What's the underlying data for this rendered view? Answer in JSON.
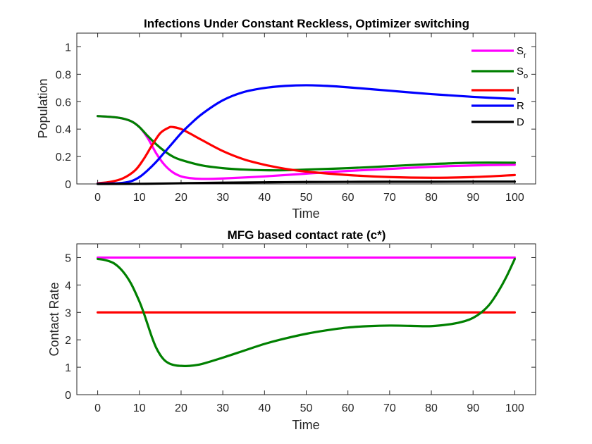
{
  "chart_data": [
    {
      "type": "line",
      "title": "Infections Under Constant Reckless, Optimizer switching",
      "xlabel": "Time",
      "ylabel": "Population",
      "xlim": [
        -5,
        105
      ],
      "ylim": [
        0,
        1.1
      ],
      "xticks": [
        0,
        10,
        20,
        30,
        40,
        50,
        60,
        70,
        80,
        90,
        100
      ],
      "yticks": [
        0,
        0.2,
        0.4,
        0.6,
        0.8,
        1
      ],
      "ytick_labels": [
        "0",
        "0.2",
        "0.4",
        "0.6",
        "0.8",
        "1"
      ],
      "grid": false,
      "legend_location": "top-right",
      "series": [
        {
          "name": "S",
          "sub": "r",
          "color": "#ff00ff",
          "x": [
            0,
            5,
            8,
            10,
            12,
            14,
            16,
            18,
            20,
            22,
            25,
            30,
            40,
            50,
            60,
            70,
            80,
            90,
            100
          ],
          "y": [
            0.495,
            0.483,
            0.458,
            0.415,
            0.335,
            0.225,
            0.14,
            0.085,
            0.055,
            0.043,
            0.037,
            0.04,
            0.055,
            0.075,
            0.095,
            0.11,
            0.125,
            0.135,
            0.14
          ]
        },
        {
          "name": "S",
          "sub": "o",
          "color": "#008000",
          "x": [
            0,
            5,
            8,
            10,
            12,
            14,
            16,
            18,
            20,
            25,
            30,
            35,
            40,
            45,
            50,
            60,
            70,
            80,
            90,
            100
          ],
          "y": [
            0.495,
            0.483,
            0.458,
            0.415,
            0.35,
            0.29,
            0.24,
            0.2,
            0.175,
            0.135,
            0.115,
            0.105,
            0.1,
            0.1,
            0.105,
            0.115,
            0.13,
            0.145,
            0.155,
            0.155
          ]
        },
        {
          "name": "I",
          "sub": "",
          "color": "#ff0000",
          "x": [
            0,
            3,
            6,
            9,
            11,
            13,
            15,
            17,
            18,
            20,
            22,
            25,
            30,
            35,
            40,
            45,
            50,
            60,
            70,
            80,
            90,
            100
          ],
          "y": [
            0.005,
            0.015,
            0.04,
            0.1,
            0.18,
            0.28,
            0.37,
            0.41,
            0.415,
            0.4,
            0.37,
            0.32,
            0.24,
            0.18,
            0.14,
            0.11,
            0.09,
            0.065,
            0.05,
            0.045,
            0.05,
            0.065
          ]
        },
        {
          "name": "R",
          "sub": "",
          "color": "#0000ff",
          "x": [
            0,
            5,
            8,
            10,
            12,
            14,
            16,
            18,
            20,
            22,
            25,
            30,
            35,
            40,
            45,
            50,
            55,
            60,
            70,
            80,
            90,
            100
          ],
          "y": [
            0.002,
            0.005,
            0.02,
            0.05,
            0.1,
            0.16,
            0.23,
            0.3,
            0.37,
            0.43,
            0.51,
            0.61,
            0.67,
            0.7,
            0.715,
            0.72,
            0.715,
            0.705,
            0.68,
            0.655,
            0.635,
            0.62
          ]
        },
        {
          "name": "D",
          "sub": "",
          "color": "#000000",
          "x": [
            0,
            10,
            20,
            30,
            40,
            50,
            60,
            70,
            80,
            90,
            100
          ],
          "y": [
            0.0,
            0.001,
            0.005,
            0.009,
            0.012,
            0.014,
            0.015,
            0.016,
            0.016,
            0.017,
            0.017
          ]
        }
      ]
    },
    {
      "type": "line",
      "title": "MFG based contact rate (c*)",
      "xlabel": "Time",
      "ylabel": "Contact Rate",
      "xlim": [
        -5,
        105
      ],
      "ylim": [
        0,
        5.5
      ],
      "xticks": [
        0,
        10,
        20,
        30,
        40,
        50,
        60,
        70,
        80,
        90,
        100
      ],
      "yticks": [
        0,
        1,
        2,
        3,
        4,
        5
      ],
      "ytick_labels": [
        "0",
        "1",
        "2",
        "3",
        "4",
        "5"
      ],
      "grid": false,
      "series": [
        {
          "color": "#ff00ff",
          "x": [
            0,
            100
          ],
          "y": [
            5,
            5
          ]
        },
        {
          "color": "#ff0000",
          "x": [
            0,
            100
          ],
          "y": [
            3,
            3
          ]
        },
        {
          "color": "#008000",
          "x": [
            0,
            2,
            4,
            6,
            8,
            10,
            11,
            12,
            13,
            14,
            15,
            16,
            17,
            18,
            19,
            20,
            22,
            25,
            30,
            35,
            40,
            45,
            50,
            55,
            60,
            65,
            70,
            75,
            80,
            85,
            88,
            90,
            92,
            94,
            96,
            98,
            100
          ],
          "y": [
            4.95,
            4.9,
            4.78,
            4.5,
            4.05,
            3.4,
            3.0,
            2.55,
            2.1,
            1.72,
            1.45,
            1.26,
            1.15,
            1.09,
            1.06,
            1.05,
            1.05,
            1.12,
            1.35,
            1.6,
            1.85,
            2.05,
            2.22,
            2.35,
            2.45,
            2.5,
            2.52,
            2.51,
            2.5,
            2.58,
            2.68,
            2.8,
            3.0,
            3.3,
            3.75,
            4.3,
            4.95
          ]
        }
      ]
    }
  ]
}
